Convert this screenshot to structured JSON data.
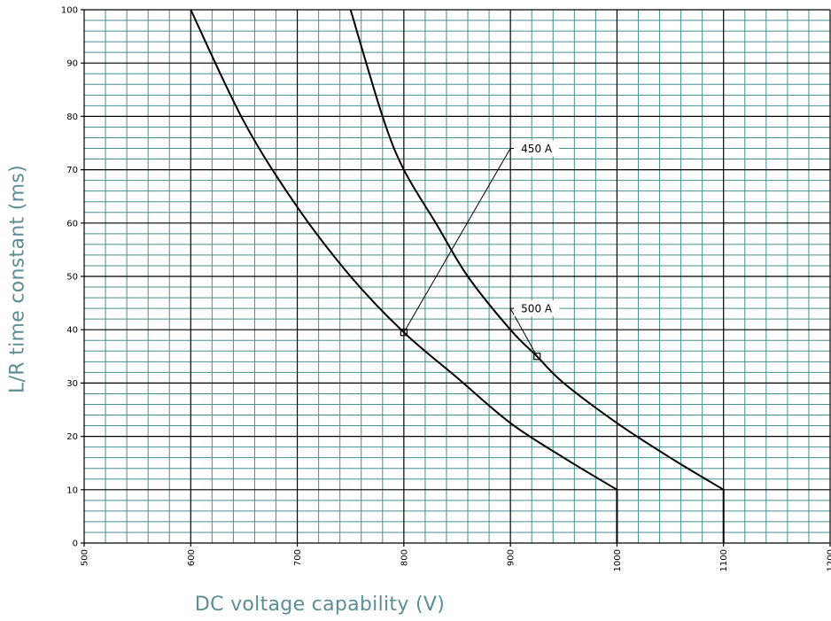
{
  "chart_data": {
    "type": "line",
    "title": "",
    "xlabel": "DC voltage capability (V)",
    "ylabel": "L/R time constant (ms)",
    "xlim": [
      500,
      1200
    ],
    "ylim": [
      0,
      100
    ],
    "x_ticks": [
      "500",
      "600",
      "700",
      "800",
      "900",
      "1000",
      "1100",
      "1200"
    ],
    "y_ticks": [
      "0",
      "10",
      "20",
      "30",
      "40",
      "50",
      "60",
      "70",
      "80",
      "90",
      "100"
    ],
    "grid": true,
    "grid_colors": {
      "minor": "#4a8e8e",
      "major": "#000000"
    },
    "series": [
      {
        "name": "450 A",
        "color": "#000000",
        "points": [
          [
            600,
            100
          ],
          [
            650,
            79
          ],
          [
            700,
            63
          ],
          [
            750,
            50
          ],
          [
            800,
            39.5
          ],
          [
            850,
            31
          ],
          [
            900,
            22.5
          ],
          [
            950,
            16
          ],
          [
            1000,
            10
          ],
          [
            1000,
            0
          ]
        ]
      },
      {
        "name": "500 A",
        "color": "#000000",
        "points": [
          [
            750,
            100
          ],
          [
            780,
            80
          ],
          [
            800,
            70
          ],
          [
            830,
            60
          ],
          [
            860,
            50
          ],
          [
            900,
            40
          ],
          [
            925,
            35
          ],
          [
            950,
            30
          ],
          [
            1000,
            22.5
          ],
          [
            1050,
            16
          ],
          [
            1100,
            10
          ],
          [
            1100,
            0
          ]
        ]
      }
    ],
    "annotations": [
      {
        "text": "450 A",
        "marker": [
          800,
          39.5
        ],
        "label_at": [
          900,
          74
        ]
      },
      {
        "text": "500 A",
        "marker": [
          925,
          35
        ],
        "label_at": [
          900,
          44
        ]
      }
    ]
  }
}
